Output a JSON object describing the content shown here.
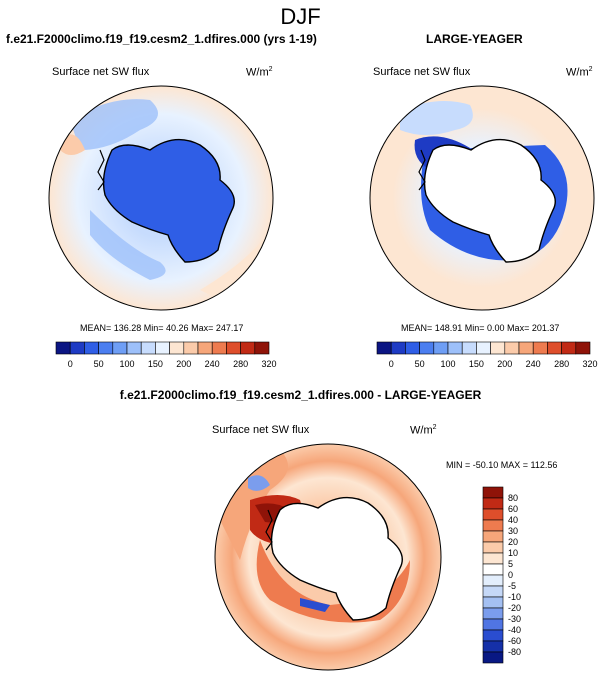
{
  "page": {
    "title": "DJF"
  },
  "chart_data": [
    {
      "type": "heatmap",
      "projection": "south-polar-stereographic",
      "title": "f.e21.F2000climo.f19_f19.cesm2_1.dfires.000 (yrs 1-19)",
      "variable": "Surface net SW flux",
      "units_base": "W/m",
      "units_exp": "2",
      "stats": {
        "mean": "136.28",
        "min": "40.26",
        "max": "247.17"
      },
      "stats_text": "MEAN= 136.28  Min=  40.26  Max= 247.17",
      "levels": [
        "0",
        "50",
        "100",
        "150",
        "200",
        "240",
        "280",
        "320"
      ],
      "colors": [
        "#0b1583",
        "#1e3bc4",
        "#2f5ee6",
        "#4b7ef0",
        "#6e9ef5",
        "#9dc0fa",
        "#c7dcfd",
        "#e8f2ff",
        "#fde6d2",
        "#fbcbaa",
        "#f6a67a",
        "#ee7b4f",
        "#de4e2b",
        "#c12a15",
        "#8f1308"
      ],
      "land_mask": false
    },
    {
      "type": "heatmap",
      "projection": "south-polar-stereographic",
      "title": "LARGE-YEAGER",
      "variable": "Surface net SW flux",
      "units_base": "W/m",
      "units_exp": "2",
      "stats": {
        "mean": "148.91",
        "min": "0.00",
        "max": "201.37"
      },
      "stats_text": "MEAN= 148.91  Min=   0.00  Max= 201.37",
      "levels": [
        "0",
        "50",
        "100",
        "150",
        "200",
        "240",
        "280",
        "320"
      ],
      "colors": [
        "#0b1583",
        "#1e3bc4",
        "#2f5ee6",
        "#4b7ef0",
        "#6e9ef5",
        "#9dc0fa",
        "#c7dcfd",
        "#e8f2ff",
        "#fde6d2",
        "#fbcbaa",
        "#f6a67a",
        "#ee7b4f",
        "#de4e2b",
        "#c12a15",
        "#8f1308"
      ],
      "land_mask": true
    },
    {
      "type": "heatmap",
      "projection": "south-polar-stereographic",
      "title": "f.e21.F2000climo.f19_f19.cesm2_1.dfires.000 - LARGE-YEAGER",
      "variable": "Surface net SW flux",
      "units_base": "W/m",
      "units_exp": "2",
      "stats": {
        "min": "-50.10",
        "max": "112.56"
      },
      "stats_text": "MIN = -50.10 MAX = 112.56",
      "levels": [
        "80",
        "60",
        "40",
        "30",
        "20",
        "10",
        "5",
        "0",
        "-5",
        "-10",
        "-20",
        "-30",
        "-40",
        "-60",
        "-80"
      ],
      "colors": [
        "#8f1308",
        "#c12a15",
        "#de4e2b",
        "#ee7b4f",
        "#f6a67a",
        "#fbcbaa",
        "#fde6d2",
        "#ffffff",
        "#e3eefc",
        "#c5d8f7",
        "#a4c0f2",
        "#7b9ded",
        "#5075e3",
        "#2a4dd0",
        "#1530a8",
        "#081883"
      ],
      "land_mask": true
    }
  ]
}
